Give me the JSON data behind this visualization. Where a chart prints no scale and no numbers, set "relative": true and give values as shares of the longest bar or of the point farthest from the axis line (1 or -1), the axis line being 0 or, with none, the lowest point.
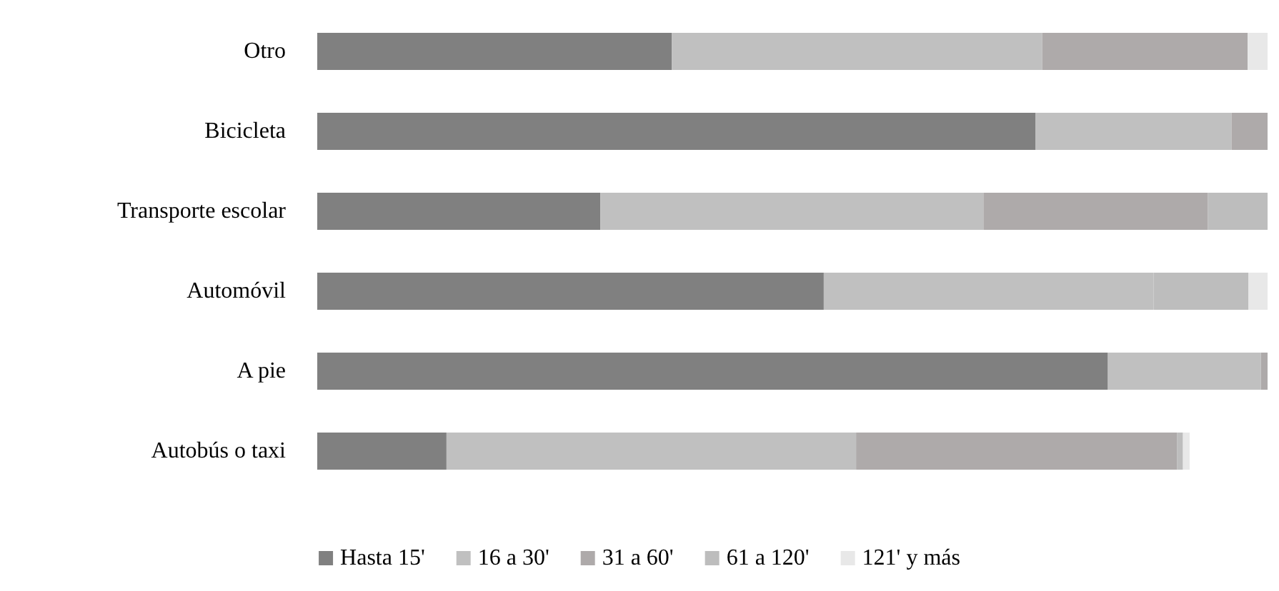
{
  "chart_data": {
    "type": "bar",
    "orientation": "horizontal",
    "stacked": true,
    "relative": true,
    "legend": "bottom",
    "categories": [
      "Otro",
      "Bicicleta",
      "Transporte escolar",
      "Automóvil",
      "A pie",
      "Autobús o taxi"
    ],
    "series": [
      {
        "name": "Hasta 15'",
        "color": "#808080",
        "values": [
          0.373,
          0.756,
          0.298,
          0.533,
          0.832,
          0.136
        ]
      },
      {
        "name": "16 a 30'",
        "color": "#c0c0c0",
        "values": [
          0.39,
          0.206,
          0.403,
          0.347,
          0.161,
          0.431
        ]
      },
      {
        "name": "31 a 60'",
        "color": "#aeaaaa",
        "values": [
          0.216,
          0.038,
          0.236,
          null,
          0.007,
          0.338
        ]
      },
      {
        "name": "61 a 120'",
        "color": "#bdbdbd",
        "values": [
          null,
          null,
          0.063,
          0.1,
          null,
          0.006
        ]
      },
      {
        "name": "121' y más",
        "color": "#e8e8e8",
        "values": [
          0.021,
          null,
          null,
          0.02,
          null,
          0.007
        ]
      }
    ]
  }
}
